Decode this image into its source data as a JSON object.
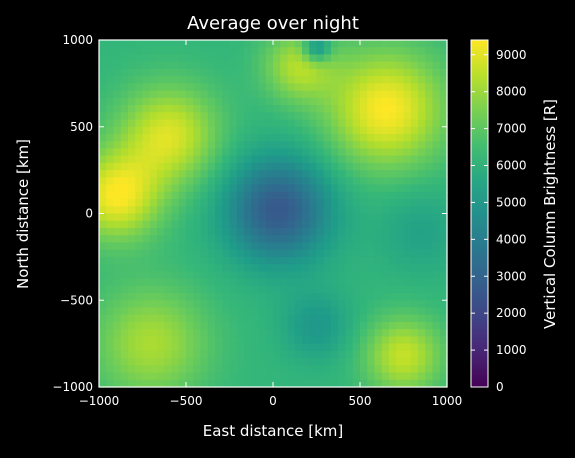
{
  "chart_data": {
    "type": "heatmap",
    "title": "Average over night",
    "xlabel": "East distance [km]",
    "ylabel": "North distance [km]",
    "xlim": [
      -1000,
      1000
    ],
    "ylim": [
      -1000,
      1000
    ],
    "xticks": [
      -1000,
      -500,
      0,
      500,
      1000
    ],
    "yticks": [
      -1000,
      -500,
      0,
      500,
      1000
    ],
    "xtick_labels": [
      "−1000",
      "−500",
      "0",
      "500",
      "1000"
    ],
    "ytick_labels": [
      "−1000",
      "−500",
      "0",
      "500",
      "1000"
    ],
    "colorbar": {
      "label": "Vertical Column Brightness [R]",
      "range": [
        0,
        9400
      ],
      "ticks": [
        0,
        1000,
        2000,
        3000,
        4000,
        5000,
        6000,
        7000,
        8000,
        9000
      ],
      "tick_labels": [
        "0",
        "1000",
        "2000",
        "3000",
        "4000",
        "5000",
        "6000",
        "7000",
        "8000",
        "9000"
      ],
      "colormap": "viridis"
    },
    "background_level": 6200,
    "regions": [
      {
        "name": "central minimum",
        "x": 30,
        "y": 20,
        "peak": 2600,
        "radius": 300
      },
      {
        "name": "west bright band",
        "x": -900,
        "y": 100,
        "peak": 9300,
        "radius": 250
      },
      {
        "name": "north-west bright",
        "x": -600,
        "y": 450,
        "peak": 8900,
        "radius": 280
      },
      {
        "name": "north-east bright",
        "x": 650,
        "y": 600,
        "peak": 9400,
        "radius": 330
      },
      {
        "name": "north bright",
        "x": 150,
        "y": 850,
        "peak": 8300,
        "radius": 200
      },
      {
        "name": "south-west bright",
        "x": -700,
        "y": -750,
        "peak": 8200,
        "radius": 320
      },
      {
        "name": "south-east bright",
        "x": 750,
        "y": -820,
        "peak": 8600,
        "radius": 220
      },
      {
        "name": "south darker",
        "x": 250,
        "y": -650,
        "peak": 5000,
        "radius": 200
      },
      {
        "name": "north dark notch",
        "x": 250,
        "y": 950,
        "peak": 3800,
        "radius": 80
      },
      {
        "name": "east mid dim",
        "x": 850,
        "y": -100,
        "peak": 5400,
        "radius": 250
      }
    ],
    "grid": false,
    "legend": "colorbar right"
  }
}
